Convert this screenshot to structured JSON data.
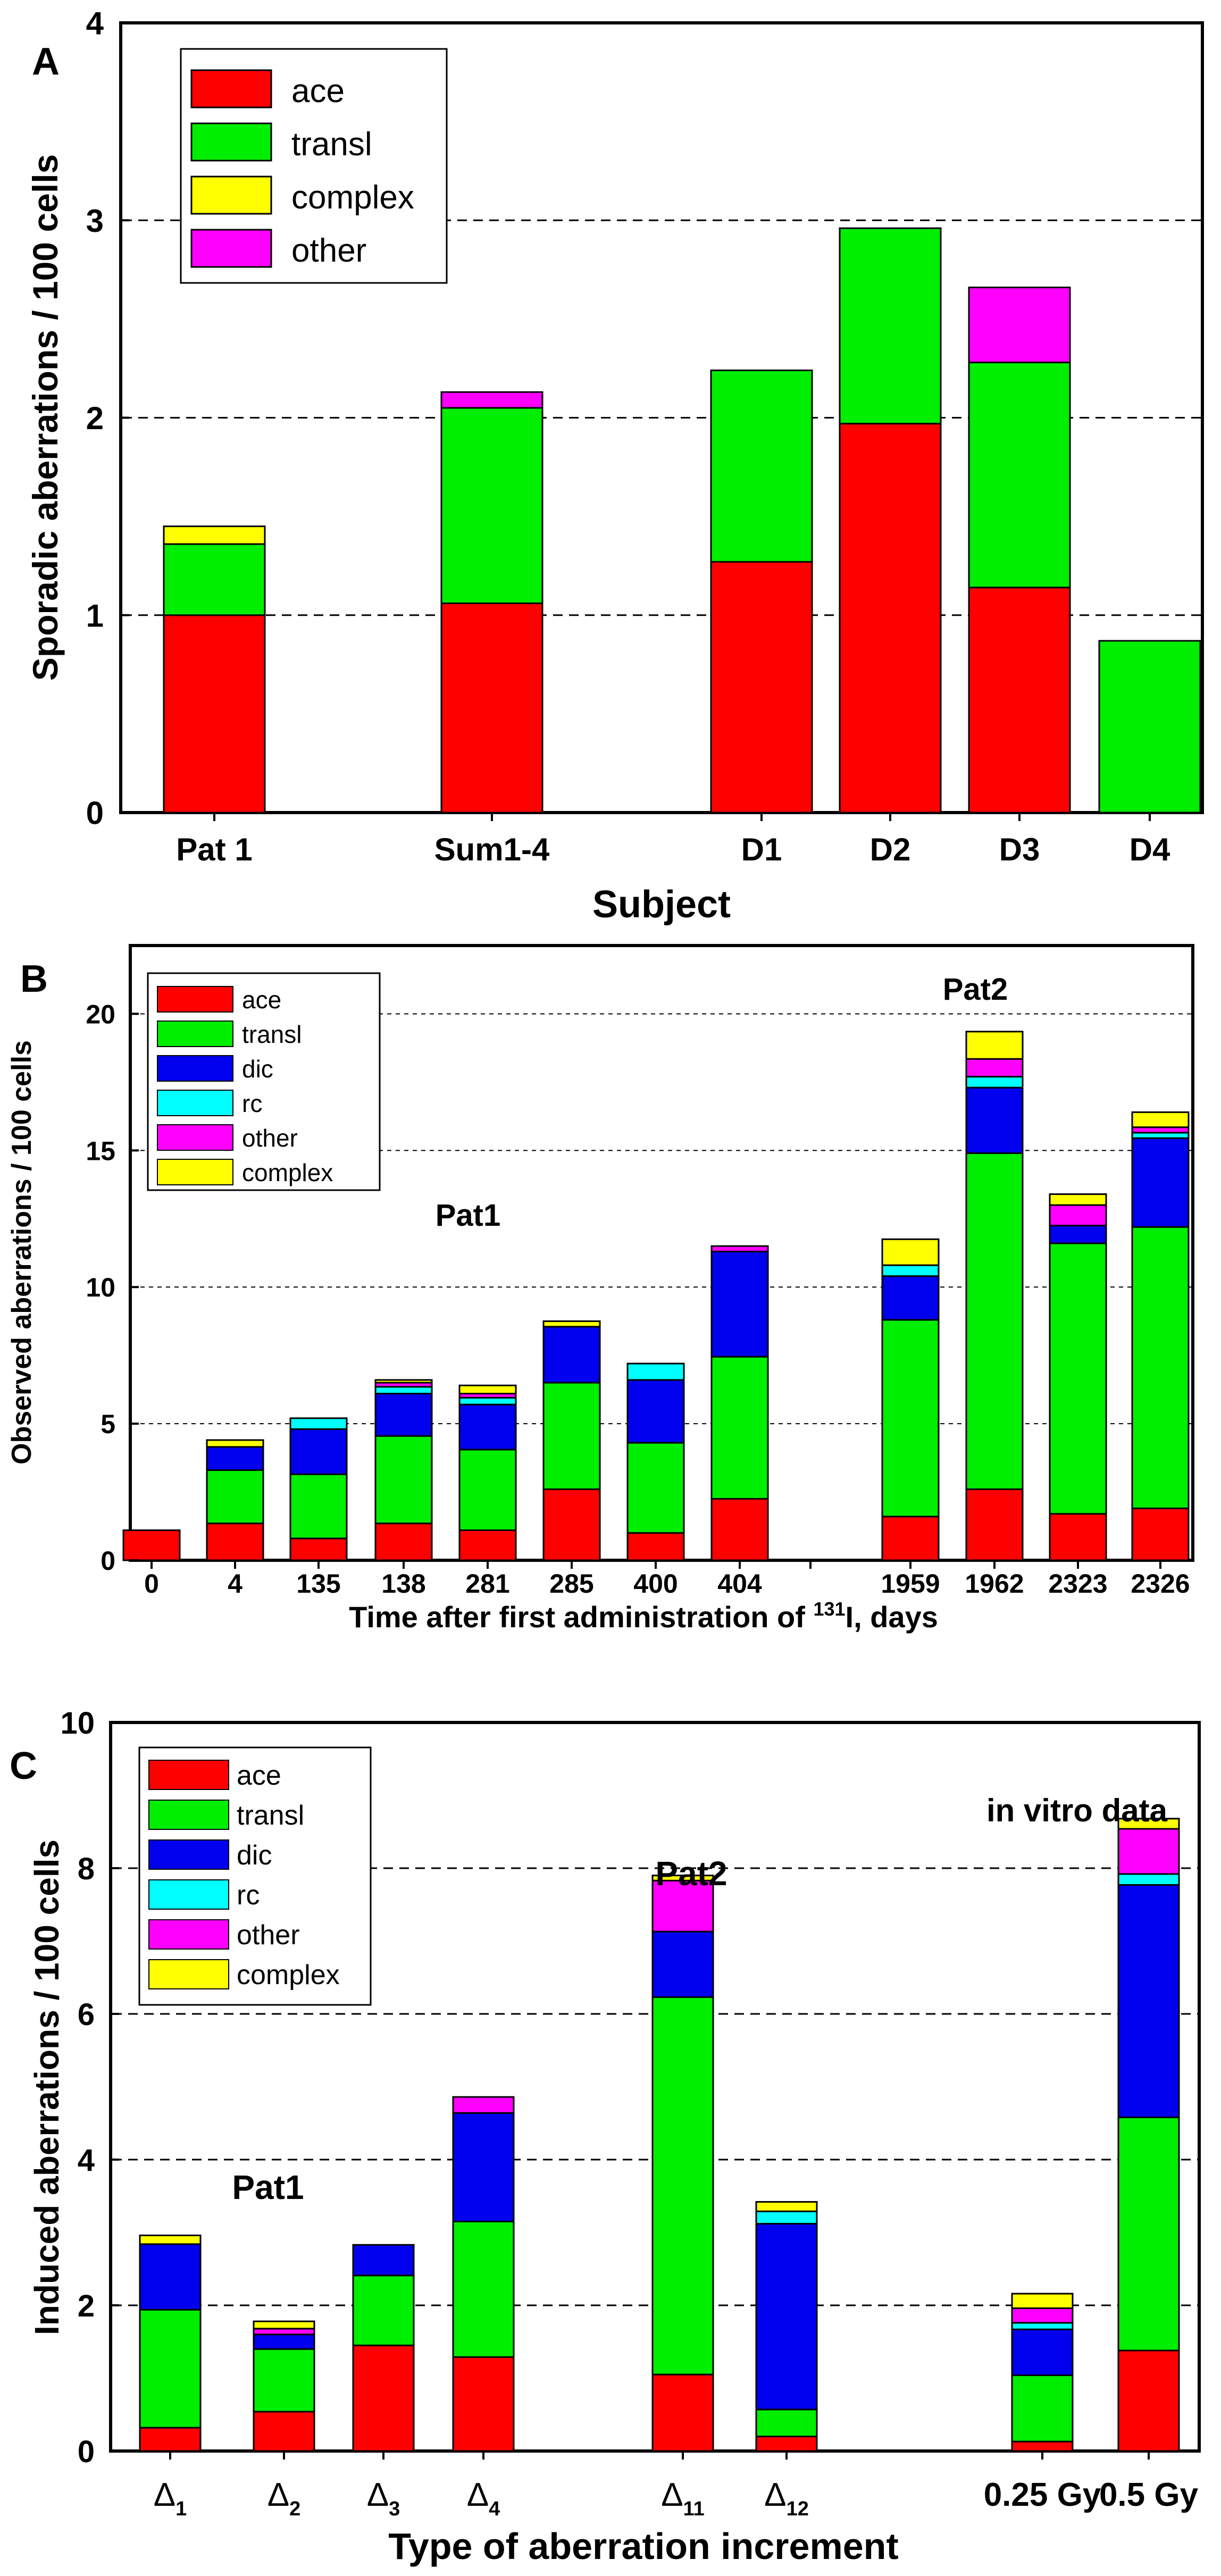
{
  "colors": {
    "ace": "#ff0000",
    "transl": "#00ee00",
    "dic": "#0000ee",
    "rc": "#00ffff",
    "other": "#ff00ff",
    "complex": "#ffff00"
  },
  "chart_data": [
    {
      "type": "bar",
      "stacked": true,
      "panel_label": "A",
      "xlabel": "Subject",
      "ylabel": "Sporadic aberrations / 100 cells",
      "ylim": [
        0,
        4
      ],
      "yticks": [
        "0",
        "1",
        "2",
        "3",
        "4"
      ],
      "grid": "dashed horizontal at 1, 2, 3",
      "legend_position": "top-left",
      "legend": [
        "ace",
        "transl",
        "complex",
        "other"
      ],
      "categories": [
        "Pat 1",
        "Sum1-4",
        "D1",
        "D2",
        "D3",
        "D4"
      ],
      "series": [
        {
          "name": "ace",
          "values": [
            1.0,
            1.06,
            1.27,
            1.97,
            1.14,
            0
          ]
        },
        {
          "name": "transl",
          "values": [
            0.36,
            0.99,
            0.97,
            0.99,
            1.14,
            0.87
          ]
        },
        {
          "name": "complex",
          "values": [
            0.09,
            0,
            0,
            0,
            0,
            0
          ]
        },
        {
          "name": "other",
          "values": [
            0,
            0.08,
            0,
            0,
            0.38,
            0
          ]
        }
      ]
    },
    {
      "type": "bar",
      "stacked": true,
      "panel_label": "B",
      "xlabel_parts": [
        "Time after first administration of ",
        "131",
        "I, days"
      ],
      "ylabel": "Observed aberrations / 100 cells",
      "ylim": [
        0,
        22.5
      ],
      "yticks": [
        "0",
        "5",
        "10",
        "15",
        "20"
      ],
      "grid": "dotted horizontal at 5, 10, 15, 20",
      "legend_position": "top-left",
      "legend": [
        "ace",
        "transl",
        "dic",
        "rc",
        "other",
        "complex"
      ],
      "annotations": [
        "Pat1",
        "Pat2"
      ],
      "categories": [
        "0",
        "4",
        "135",
        "138",
        "281",
        "285",
        "400",
        "404",
        "1959",
        "1962",
        "2323",
        "2326"
      ],
      "series": [
        {
          "name": "ace",
          "values": [
            1.1,
            1.35,
            0.8,
            1.35,
            1.1,
            2.6,
            1.0,
            2.25,
            1.6,
            2.6,
            1.7,
            1.9
          ]
        },
        {
          "name": "transl",
          "values": [
            0,
            1.95,
            2.35,
            3.2,
            2.95,
            3.9,
            3.3,
            5.2,
            7.2,
            12.3,
            9.9,
            10.3
          ]
        },
        {
          "name": "dic",
          "values": [
            0,
            0.85,
            1.65,
            1.55,
            1.65,
            2.05,
            2.3,
            3.85,
            1.6,
            2.4,
            0.65,
            3.25
          ]
        },
        {
          "name": "rc",
          "values": [
            0,
            0,
            0.4,
            0.25,
            0.25,
            0,
            0.6,
            0,
            0.4,
            0.4,
            0,
            0.2
          ]
        },
        {
          "name": "other",
          "values": [
            0,
            0,
            0,
            0.15,
            0.15,
            0,
            0,
            0.2,
            0,
            0.65,
            0.75,
            0.2
          ]
        },
        {
          "name": "complex",
          "values": [
            0,
            0.25,
            0,
            0.1,
            0.3,
            0.2,
            0,
            0,
            0.95,
            1.0,
            0.4,
            0.55
          ]
        }
      ]
    },
    {
      "type": "bar",
      "stacked": true,
      "panel_label": "C",
      "xlabel": "Type of aberration increment",
      "ylabel": "Induced aberrations / 100 cells",
      "ylim": [
        0,
        10
      ],
      "yticks": [
        "0",
        "2",
        "4",
        "6",
        "8",
        "10"
      ],
      "grid": "dashed horizontal at 2, 4, 6, 8",
      "legend_position": "top-left",
      "legend": [
        "ace",
        "transl",
        "dic",
        "rc",
        "other",
        "complex"
      ],
      "annotations": [
        "Pat1",
        "Pat2",
        "in vitro data"
      ],
      "categories": [
        {
          "base": "Δ",
          "sub": "1"
        },
        {
          "base": "Δ",
          "sub": "2"
        },
        {
          "base": "Δ",
          "sub": "3"
        },
        {
          "base": "Δ",
          "sub": "4"
        },
        {
          "base": "Δ",
          "sub": "11"
        },
        {
          "base": "Δ",
          "sub": "12"
        },
        {
          "base": "0.25 Gy",
          "sub": ""
        },
        {
          "base": "0.5 Gy",
          "sub": ""
        }
      ],
      "series": [
        {
          "name": "ace",
          "values": [
            0.32,
            0.54,
            1.45,
            1.29,
            1.05,
            0.2,
            0.13,
            1.38
          ]
        },
        {
          "name": "transl",
          "values": [
            1.62,
            0.86,
            0.96,
            1.86,
            5.18,
            0.37,
            0.91,
            3.2
          ]
        },
        {
          "name": "dic",
          "values": [
            0.9,
            0.2,
            0.42,
            1.49,
            0.9,
            2.55,
            0.63,
            3.19
          ]
        },
        {
          "name": "rc",
          "values": [
            0,
            0,
            0,
            0,
            0,
            0.17,
            0.09,
            0.15
          ]
        },
        {
          "name": "other",
          "values": [
            0,
            0.08,
            0,
            0.22,
            0.7,
            0,
            0.2,
            0.62
          ]
        },
        {
          "name": "complex",
          "values": [
            0.12,
            0.1,
            0,
            0,
            0.07,
            0.13,
            0.2,
            0.14
          ]
        }
      ]
    }
  ]
}
